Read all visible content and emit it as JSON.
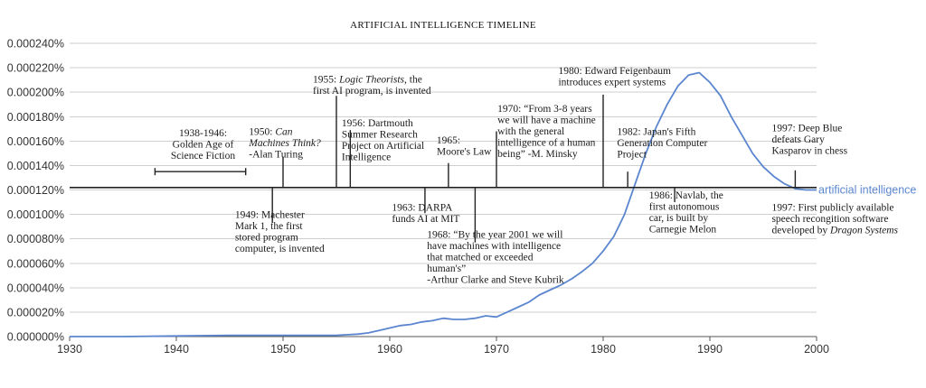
{
  "chart_data": {
    "type": "line",
    "title": "ARTIFICIAL INTELLIGENCE TIMELINE",
    "xlim": [
      1930,
      2000
    ],
    "ylim": [
      0,
      0.00024
    ],
    "x_ticks": [
      {
        "value": 1930,
        "label": "1930"
      },
      {
        "value": 1940,
        "label": "1940"
      },
      {
        "value": 1950,
        "label": "1950"
      },
      {
        "value": 1960,
        "label": "1960"
      },
      {
        "value": 1970,
        "label": "1970"
      },
      {
        "value": 1980,
        "label": "1980"
      },
      {
        "value": 1990,
        "label": "1990"
      },
      {
        "value": 2000,
        "label": "2000"
      }
    ],
    "y_ticks": [
      {
        "value": 0,
        "label": "0.000000%"
      },
      {
        "value": 2e-05,
        "label": "0.000020%"
      },
      {
        "value": 4e-05,
        "label": "0.000040%"
      },
      {
        "value": 6e-05,
        "label": "0.000060%"
      },
      {
        "value": 8e-05,
        "label": "0.000080%"
      },
      {
        "value": 0.0001,
        "label": "0.000100%"
      },
      {
        "value": 0.00012,
        "label": "0.000120%"
      },
      {
        "value": 0.00014,
        "label": "0.000140%"
      },
      {
        "value": 0.00016,
        "label": "0.000160%"
      },
      {
        "value": 0.00018,
        "label": "0.000180%"
      },
      {
        "value": 0.0002,
        "label": "0.000200%"
      },
      {
        "value": 0.00022,
        "label": "0.000220%"
      },
      {
        "value": 0.00024,
        "label": "0.000240%"
      }
    ],
    "grid": "horizontal",
    "series": [
      {
        "name": "artificial intelligence",
        "color": "#5b86cf",
        "x": [
          1930,
          1935,
          1940,
          1945,
          1950,
          1955,
          1957,
          1958,
          1959,
          1960,
          1961,
          1962,
          1963,
          1964,
          1965,
          1966,
          1967,
          1968,
          1969,
          1970,
          1971,
          1972,
          1973,
          1974,
          1975,
          1976,
          1977,
          1978,
          1979,
          1980,
          1981,
          1982,
          1983,
          1984,
          1985,
          1986,
          1987,
          1988,
          1989,
          1990,
          1991,
          1992,
          1993,
          1994,
          1995,
          1996,
          1997,
          1998,
          1999,
          2000
        ],
        "y": [
          0,
          0,
          5e-07,
          1e-06,
          1e-06,
          1e-06,
          2e-06,
          3e-06,
          5e-06,
          7e-06,
          9e-06,
          1e-05,
          1.2e-05,
          1.3e-05,
          1.5e-05,
          1.4e-05,
          1.4e-05,
          1.5e-05,
          1.7e-05,
          1.6e-05,
          2e-05,
          2.4e-05,
          2.8e-05,
          3.4e-05,
          3.8e-05,
          4.2e-05,
          4.7e-05,
          5.3e-05,
          6e-05,
          7e-05,
          8.2e-05,
          0.0001,
          0.000125,
          0.00015,
          0.000172,
          0.00019,
          0.000205,
          0.000214,
          0.000216,
          0.000208,
          0.000197,
          0.00018,
          0.000165,
          0.00015,
          0.000139,
          0.000131,
          0.000125,
          0.000121,
          0.00012,
          0.00012
        ]
      }
    ],
    "timeline": {
      "y_value": 0.000122,
      "events": [
        {
          "id": "1938",
          "year": 1938,
          "year_end": 1946.5,
          "range": true,
          "side": "above",
          "lines": [
            "1938-1946:",
            "Golden Age of",
            "Science Fiction"
          ],
          "align": "middle",
          "label_x": 1942.5,
          "label_y_value": 0.000164
        },
        {
          "id": "1950",
          "year": 1950,
          "side": "above",
          "tick_to_value": 0.000147,
          "lines": [
            "1950: Can",
            "Machines Think?",
            "-Alan Turing"
          ],
          "italic_line_parts": {
            "0": "Can",
            "1": "Machines Think?"
          },
          "align": "start",
          "label_x": 1946.8,
          "label_y_value": 0.000165
        },
        {
          "id": "1949",
          "year": 1949,
          "side": "below",
          "tick_to_value": 9.3e-05,
          "lines": [
            "1949: Machester",
            "Mark 1, the first",
            "stored program",
            "computer, is invented"
          ],
          "align": "start",
          "label_x": 1945.5,
          "label_y_value": 9.7e-05
        },
        {
          "id": "1955",
          "year": 1955,
          "side": "above",
          "tick_to_value": 0.000197,
          "lines": [
            "1955: Logic Theorists, the",
            "first AI program, is invented"
          ],
          "italic_word": "Logic Theorists",
          "align": "start",
          "label_x": 1952.8,
          "label_y_value": 0.000208
        },
        {
          "id": "1956",
          "year": 1956.3,
          "side": "above",
          "tick_to_value": 0.000169,
          "lines": [
            "1956: Dartmouth",
            "Summer Research",
            "Project on Artificial",
            "Intelligence"
          ],
          "align": "start",
          "label_x": 1955.5,
          "label_y_value": 0.000172
        },
        {
          "id": "1963",
          "year": 1963.3,
          "side": "below",
          "tick_to_value": 0.000101,
          "lines": [
            "1963: DARPA",
            "funds AI at MIT"
          ],
          "align": "start",
          "label_x": 1960.2,
          "label_y_value": 0.000103
        },
        {
          "id": "1965",
          "year": 1965.5,
          "side": "above",
          "tick_to_value": 0.000142,
          "lines": [
            "1965:",
            "Moore's Law"
          ],
          "align": "start",
          "label_x": 1964.4,
          "label_y_value": 0.000158
        },
        {
          "id": "1968",
          "year": 1968,
          "side": "below",
          "tick_to_value": 7.7e-05,
          "lines": [
            "1968: “By the year 2001 we will",
            "have machines with intelligence",
            "that matched or exceeded",
            "human's”",
            "-Arthur Clarke and Steve Kubrik"
          ],
          "align": "start",
          "label_x": 1963.5,
          "label_y_value": 8.1e-05
        },
        {
          "id": "1970",
          "year": 1970,
          "side": "above",
          "tick_to_value": 0.000168,
          "lines": [
            "1970: “From 3-8 years",
            "we will have a machine",
            "with the general",
            "intelligence of a human",
            "being” -M. Minsky"
          ],
          "align": "start",
          "label_x": 1970.1,
          "label_y_value": 0.000184
        },
        {
          "id": "1980",
          "year": 1980,
          "side": "above",
          "tick_to_value": 0.000198,
          "lines": [
            "1980: Edward Feigenbaum",
            "introduces expert systems"
          ],
          "align": "start",
          "label_x": 1975.8,
          "label_y_value": 0.000215
        },
        {
          "id": "1982",
          "year": 1982.3,
          "side": "above",
          "tick_to_value": 0.000135,
          "lines": [
            "1982: Japan's Fifth",
            "Generation Computer",
            "Project"
          ],
          "align": "start",
          "label_x": 1981.3,
          "label_y_value": 0.000165
        },
        {
          "id": "1986",
          "year": 1986.7,
          "side": "below",
          "tick_to_value": 0.00011,
          "lines": [
            "1986: Navlab, the",
            "first autonomous",
            "car, is built by",
            "Carnegie Melon"
          ],
          "align": "start",
          "label_x": 1984.3,
          "label_y_value": 0.000113
        },
        {
          "id": "1997",
          "year": 1998,
          "side": "above",
          "tick_to_value": 0.000136,
          "lines": [
            "1997: Deep Blue",
            "defeats Gary",
            "Kasparov in chess"
          ],
          "align": "start",
          "label_x": 1995.8,
          "label_y_value": 0.000168
        },
        {
          "id": "1997b",
          "year": 1998,
          "side": "below",
          "lines": [
            "1997: First publicly available",
            "speech recongition software",
            "developed by Dragon Systems"
          ],
          "italic_word": "Dragon Systems",
          "align": "start",
          "label_x": 1995.8,
          "label_y_value": 0.000103
        }
      ]
    }
  }
}
